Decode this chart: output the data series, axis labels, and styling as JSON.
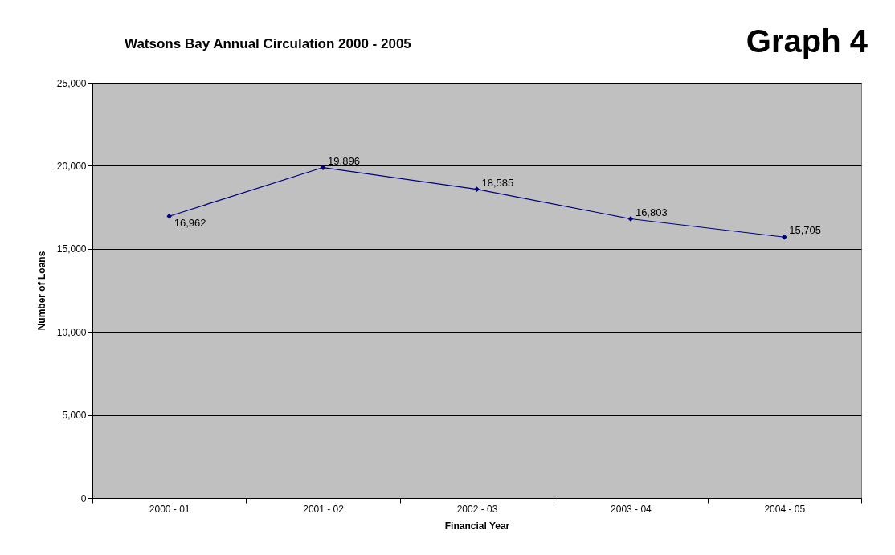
{
  "chart_data": {
    "type": "line",
    "title": "Watsons Bay Annual Circulation 2000 - 2005",
    "xlabel": "Financial Year",
    "ylabel": "Number of Loans",
    "categories": [
      "2000 - 01",
      "2001 - 02",
      "2002 - 03",
      "2003 - 04",
      "2004 - 05"
    ],
    "series": [
      {
        "color": "#000080",
        "values": [
          16962,
          19896,
          18585,
          16803,
          15705
        ],
        "value_labels": [
          "16,962",
          "19,896",
          "18,585",
          "16,803",
          "15,705"
        ]
      }
    ],
    "ylim": [
      0,
      25000
    ],
    "yticks": [
      {
        "value": 0,
        "label": "0"
      },
      {
        "value": 5000,
        "label": "5,000"
      },
      {
        "value": 10000,
        "label": "10,000"
      },
      {
        "value": 15000,
        "label": "15,000"
      },
      {
        "value": 20000,
        "label": "20,000"
      },
      {
        "value": 25000,
        "label": "25,000"
      }
    ],
    "grid": "y",
    "marker": "diamond",
    "line_style": "solid",
    "annotations": [
      "Graph 4"
    ]
  }
}
